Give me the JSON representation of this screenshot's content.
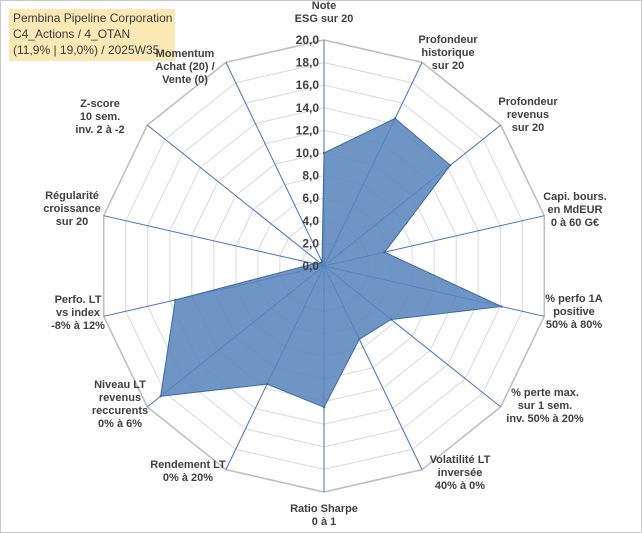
{
  "header": {
    "line1": "Pembina Pipeline Corporation",
    "line2": "C4_Actions / 4_OTAN",
    "line3": "(11,9% | 19,0%) / 2025W35"
  },
  "chart_data": {
    "type": "radar",
    "title": "Pembina Pipeline Corporation",
    "rmin": 0,
    "rmax": 20,
    "ticks": [
      "0,0",
      "2,0",
      "4,0",
      "6,0",
      "8,0",
      "10,0",
      "12,0",
      "14,0",
      "16,0",
      "18,0",
      "20,0"
    ],
    "grid": true,
    "axes": [
      [
        "Note",
        "ESG sur 20"
      ],
      [
        "Profondeur",
        "historique",
        "sur 20"
      ],
      [
        "Profondeur",
        "revenus",
        "sur 20"
      ],
      [
        "Capi. bours.",
        "en MdEUR",
        "0 à 60 G€"
      ],
      [
        "% perfo 1A",
        "positive",
        "50% à 80%"
      ],
      [
        "% perte max.",
        "sur 1 sem.",
        "inv. 50% à 20%"
      ],
      [
        "Volatilité LT",
        "inversée",
        "40% à 0%"
      ],
      [
        "Ratio Sharpe",
        "0 à 1"
      ],
      [
        "Rendement LT",
        "0% à 20%"
      ],
      [
        "Niveau LT",
        "revenus",
        "reccurents",
        "0% à 6%"
      ],
      [
        "Perfo. LT",
        "vs index",
        "-8% à 12%"
      ],
      [
        "Régularité",
        "croissance",
        "sur 20"
      ],
      [
        "Z-score",
        "10 sem.",
        "inv. 2 à -2"
      ],
      [
        "Momentum",
        "Achat (20) /",
        "Vente (0)"
      ]
    ],
    "series": [
      {
        "values": [
          10,
          14.5,
          14.3,
          5.5,
          16.1,
          7.6,
          7.2,
          12.5,
          11.6,
          18.5,
          13.5,
          0.9,
          0.4,
          0.4
        ]
      }
    ],
    "colors": {
      "fill": "#5b86bd",
      "stroke": "#3f6aa3",
      "axis": "#4472c4",
      "grid": "#d9d9d9",
      "outer": "#bfbfbf"
    }
  }
}
